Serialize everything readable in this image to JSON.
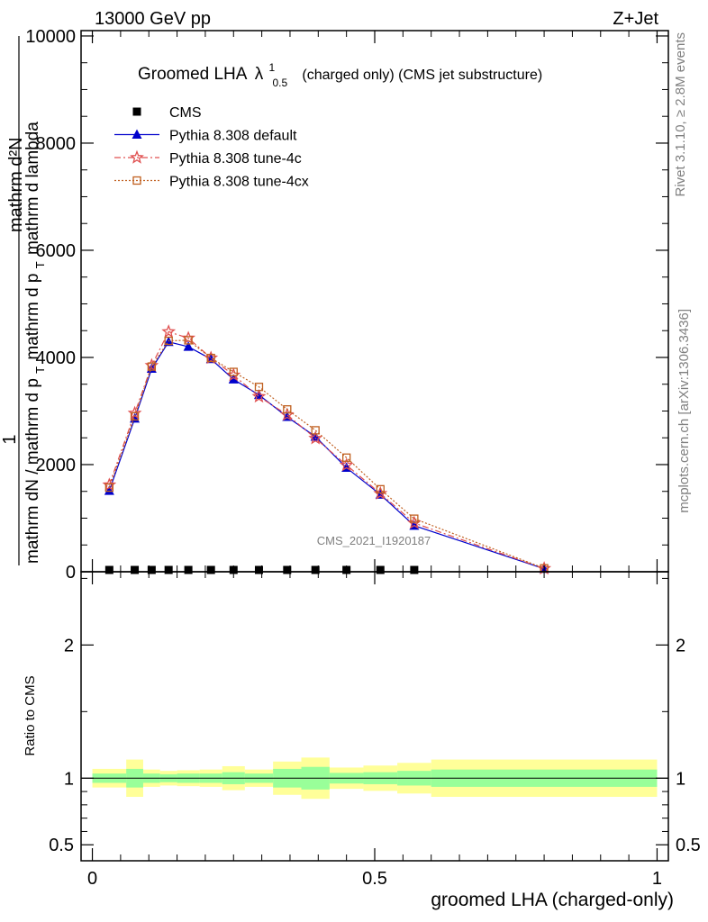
{
  "header": {
    "left": "13000 GeV pp",
    "right": "Z+Jet"
  },
  "side_text": {
    "rivet": "Rivet 3.1.10, ≥ 2.8M events",
    "mcplots": "mcplots.cern.ch [arXiv:1306.3436]"
  },
  "watermark": "CMS_2021_I1920187",
  "chart_data": [
    {
      "type": "line",
      "title": {
        "main": "Groomed LHA",
        "lambda": "λ",
        "sup": "1",
        "sub": "0.5",
        "rest": "(charged only) (CMS jet substructure)"
      },
      "ylabel": {
        "one": "1",
        "numerator": "mathrm d²N",
        "denominator_1": "mathrm dN / mathrm d p",
        "denominator_1_sub": "T",
        "denominator_2": "mathrm d p",
        "denominator_2_sub": "T",
        "denominator_3": "mathrm d lambda"
      },
      "xlim": [
        -0.02,
        1.02
      ],
      "ylim": [
        0,
        10100
      ],
      "yticks": [
        {
          "v": 0,
          "label": "0"
        },
        {
          "v": 2000,
          "label": "2000"
        },
        {
          "v": 4000,
          "label": "4000"
        },
        {
          "v": 6000,
          "label": "6000"
        },
        {
          "v": 8000,
          "label": "8000"
        },
        {
          "v": 10000,
          "label": "10000"
        }
      ],
      "legend_position": "top-left",
      "series": [
        {
          "name": "CMS",
          "color": "#000000",
          "marker": "square",
          "x": [
            0.03,
            0.075,
            0.105,
            0.135,
            0.17,
            0.21,
            0.25,
            0.295,
            0.345,
            0.395,
            0.45,
            0.51,
            0.57
          ],
          "y": [
            0,
            0,
            0,
            0,
            0,
            0,
            0,
            0,
            0,
            0,
            0,
            0,
            0
          ]
        },
        {
          "name": "Pythia 8.308 default",
          "color": "#0000cc",
          "marker": "triangle",
          "x": [
            0.03,
            0.075,
            0.105,
            0.135,
            0.17,
            0.21,
            0.25,
            0.295,
            0.345,
            0.395,
            0.45,
            0.51,
            0.57,
            0.8
          ],
          "y": [
            1510,
            2860,
            3790,
            4290,
            4200,
            3970,
            3590,
            3300,
            2890,
            2520,
            1940,
            1440,
            860,
            55
          ]
        },
        {
          "name": "Pythia 8.308 tune-4c",
          "color": "#e05050",
          "marker": "star",
          "x": [
            0.03,
            0.075,
            0.105,
            0.135,
            0.17,
            0.21,
            0.25,
            0.295,
            0.345,
            0.395,
            0.45,
            0.51,
            0.57,
            0.8
          ],
          "y": [
            1620,
            2960,
            3850,
            4480,
            4360,
            3990,
            3670,
            3270,
            2930,
            2490,
            1990,
            1460,
            910,
            60
          ]
        },
        {
          "name": "Pythia 8.308 tune-4cx",
          "color": "#c06020",
          "marker": "open-square",
          "x": [
            0.03,
            0.075,
            0.105,
            0.135,
            0.17,
            0.21,
            0.25,
            0.295,
            0.345,
            0.395,
            0.45,
            0.51,
            0.57,
            0.8
          ],
          "y": [
            1570,
            2900,
            3830,
            4310,
            4320,
            3990,
            3730,
            3450,
            3030,
            2640,
            2130,
            1540,
            990,
            65
          ]
        }
      ]
    },
    {
      "type": "area",
      "ylabel": "Ratio to CMS",
      "xlabel": "groomed LHA (charged-only)",
      "xlim": [
        -0.02,
        1.02
      ],
      "ylim": [
        0.38,
        2.55
      ],
      "xticks": [
        {
          "v": 0,
          "label": "0"
        },
        {
          "v": 0.5,
          "label": "0.5"
        },
        {
          "v": 1,
          "label": "1"
        }
      ],
      "yticks": [
        {
          "v": 0.5,
          "label": "0.5"
        },
        {
          "v": 1,
          "label": "1"
        },
        {
          "v": 2,
          "label": "2"
        }
      ],
      "bins": [
        {
          "lo": 0.0,
          "hi": 0.06,
          "stat": 0.035,
          "tot": 0.07
        },
        {
          "lo": 0.06,
          "hi": 0.09,
          "stat": 0.07,
          "tot": 0.14
        },
        {
          "lo": 0.09,
          "hi": 0.12,
          "stat": 0.035,
          "tot": 0.065
        },
        {
          "lo": 0.12,
          "hi": 0.15,
          "stat": 0.03,
          "tot": 0.055
        },
        {
          "lo": 0.15,
          "hi": 0.19,
          "stat": 0.035,
          "tot": 0.06
        },
        {
          "lo": 0.19,
          "hi": 0.23,
          "stat": 0.035,
          "tot": 0.065
        },
        {
          "lo": 0.23,
          "hi": 0.27,
          "stat": 0.045,
          "tot": 0.09
        },
        {
          "lo": 0.27,
          "hi": 0.32,
          "stat": 0.035,
          "tot": 0.065
        },
        {
          "lo": 0.32,
          "hi": 0.37,
          "stat": 0.07,
          "tot": 0.125
        },
        {
          "lo": 0.37,
          "hi": 0.42,
          "stat": 0.085,
          "tot": 0.155
        },
        {
          "lo": 0.42,
          "hi": 0.48,
          "stat": 0.04,
          "tot": 0.08
        },
        {
          "lo": 0.48,
          "hi": 0.54,
          "stat": 0.045,
          "tot": 0.095
        },
        {
          "lo": 0.54,
          "hi": 0.6,
          "stat": 0.055,
          "tot": 0.115
        },
        {
          "lo": 0.6,
          "hi": 1.0,
          "stat": 0.065,
          "tot": 0.14
        }
      ],
      "colors": {
        "stat": "#99ff99",
        "tot": "#ffff99"
      }
    }
  ]
}
